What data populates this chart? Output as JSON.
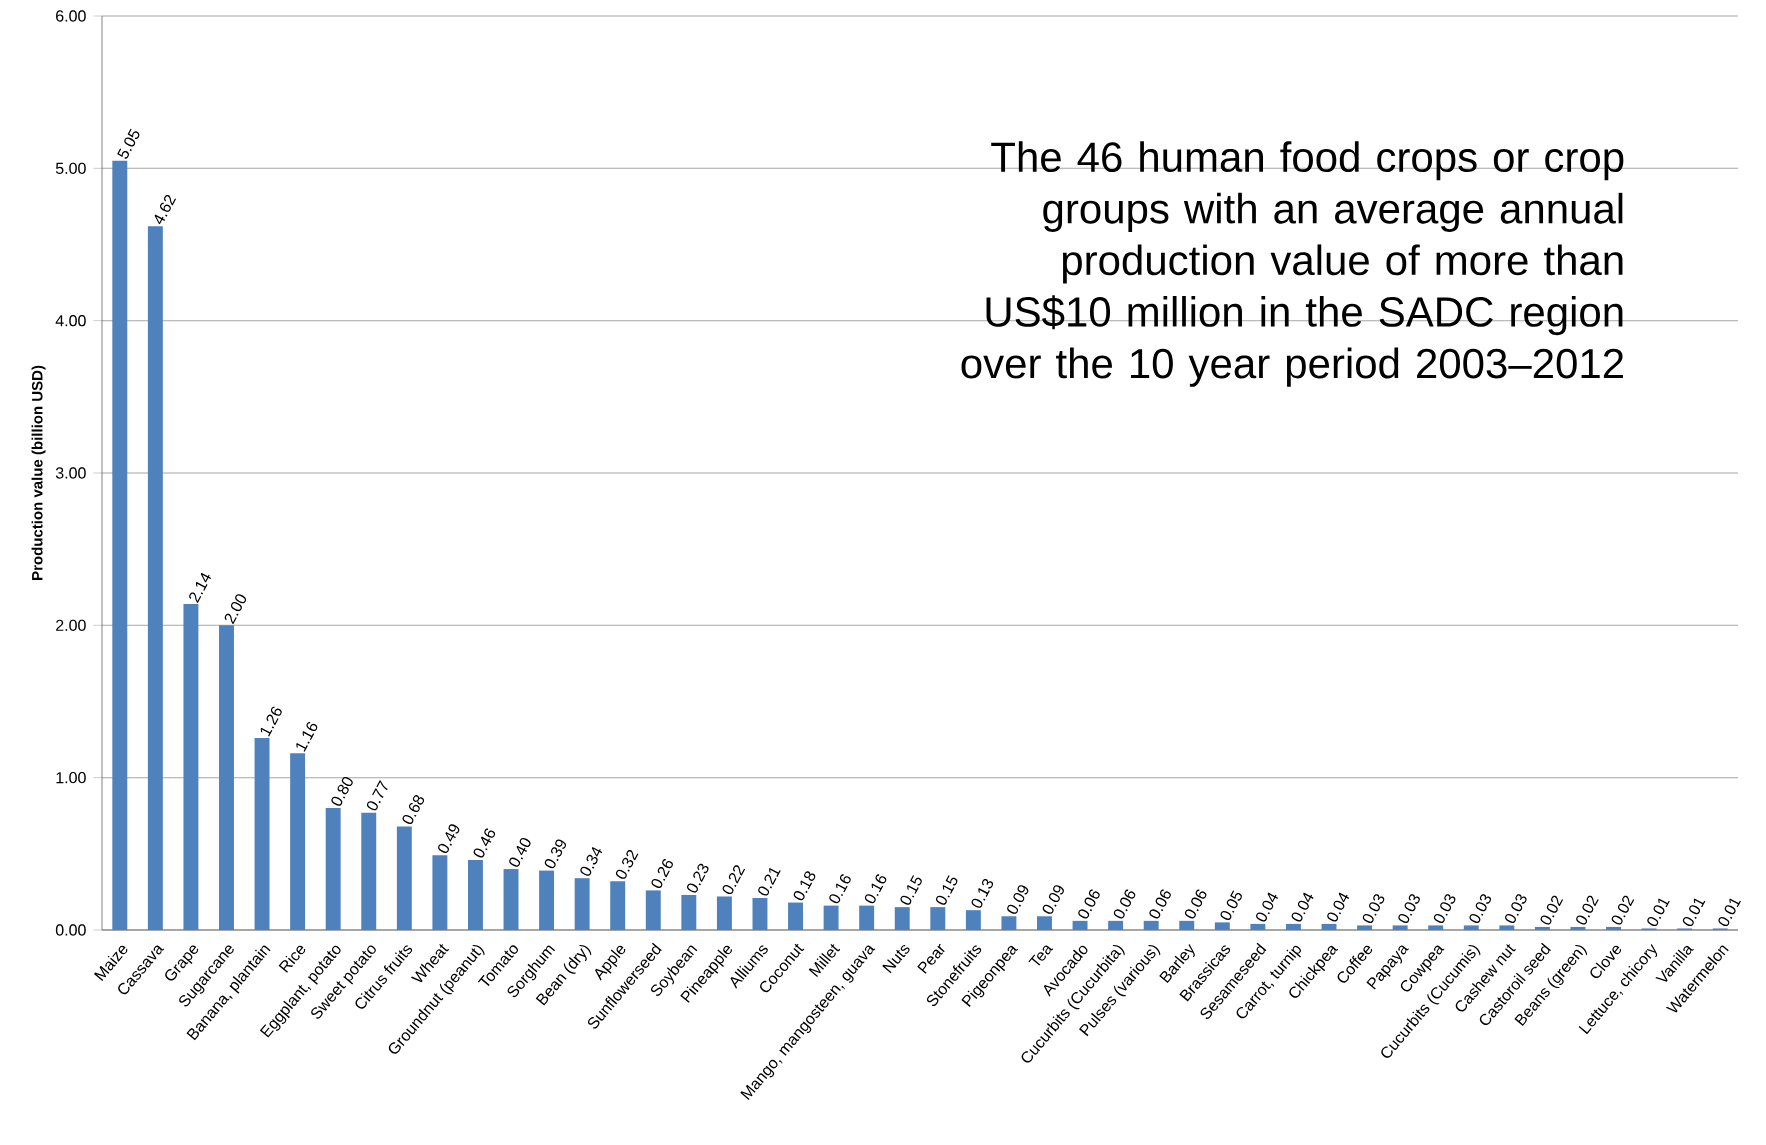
{
  "chart_data": {
    "type": "bar",
    "title": "The 46 human food crops or crop groups with an average annual production value of more than US$10 million in the SADC region over the 10 year period 2003–2012",
    "ylabel": "Production value (billion USD)",
    "categories": [
      "Maize",
      "Cassava",
      "Grape",
      "Sugarcane",
      "Banana, plantain",
      "Rice",
      "Eggplant, potato",
      "Sweet potato",
      "Citrus fruits",
      "Wheat",
      "Groundnut (peanut)",
      "Tomato",
      "Sorghum",
      "Bean (dry)",
      "Apple",
      "Sunflowerseed",
      "Soybean",
      "Pineapple",
      "Alliums",
      "Coconut",
      "Millet",
      "Mango, mangosteen, guava",
      "Nuts",
      "Pear",
      "Stonefruits",
      "Pigeonpea",
      "Tea",
      "Avocado",
      "Cucurbits (Cucurbita)",
      "Pulses (various)",
      "Barley",
      "Brassicas",
      "Sesameseed",
      "Carrot, turnip",
      "Chickpea",
      "Coffee",
      "Papaya",
      "Cowpea",
      "Cucurbits (Cucumis)",
      "Cashew nut",
      "Castoroil seed",
      "Beans (green)",
      "Clove",
      "Lettuce, chicory",
      "Vanilla",
      "Watermelon"
    ],
    "values": [
      5.05,
      4.62,
      2.14,
      2.0,
      1.26,
      1.16,
      0.8,
      0.77,
      0.68,
      0.49,
      0.46,
      0.4,
      0.39,
      0.34,
      0.32,
      0.26,
      0.23,
      0.22,
      0.21,
      0.18,
      0.16,
      0.16,
      0.15,
      0.15,
      0.13,
      0.09,
      0.09,
      0.06,
      0.06,
      0.06,
      0.06,
      0.05,
      0.04,
      0.04,
      0.04,
      0.03,
      0.03,
      0.03,
      0.03,
      0.03,
      0.02,
      0.02,
      0.02,
      0.01,
      0.01,
      0.01
    ],
    "color": "#4f81bd",
    "ylim": [
      0,
      6
    ],
    "yticks": [
      {
        "value": 0,
        "label": "0.00"
      },
      {
        "value": 1,
        "label": "1.00"
      },
      {
        "value": 2,
        "label": "2.00"
      },
      {
        "value": 3,
        "label": "3.00"
      },
      {
        "value": 4,
        "label": "4.00"
      },
      {
        "value": 5,
        "label": "5.00"
      },
      {
        "value": 6,
        "label": "6.00"
      }
    ],
    "grid": "y",
    "value_labels": [
      "5.05",
      "4.62",
      "2.14",
      "2.00",
      "1.26",
      "1.16",
      "0.80",
      "0.77",
      "0.68",
      "0.49",
      "0.46",
      "0.40",
      "0.39",
      "0.34",
      "0.32",
      "0.26",
      "0.23",
      "0.22",
      "0.21",
      "0.18",
      "0.16",
      "0.16",
      "0.15",
      "0.15",
      "0.13",
      "0.09",
      "0.09",
      "0.06",
      "0.06",
      "0.06",
      "0.06",
      "0.05",
      "0.04",
      "0.04",
      "0.04",
      "0.03",
      "0.03",
      "0.03",
      "0.03",
      "0.03",
      "0.02",
      "0.02",
      "0.02",
      "0.01",
      "0.01",
      "0.01"
    ]
  }
}
